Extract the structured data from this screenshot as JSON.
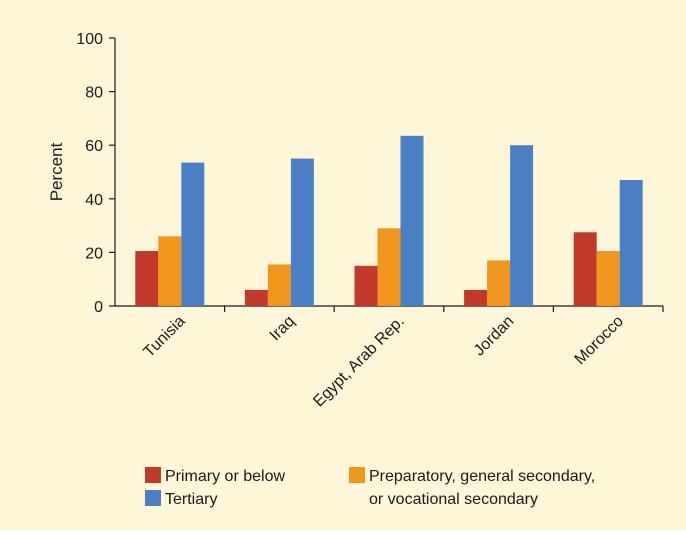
{
  "colors": {
    "background": "#fdf6d8",
    "primary": "#c0392b",
    "preparatory": "#f0951e",
    "tertiary": "#4a7fc4",
    "axis": "#1a1a1a"
  },
  "chart_data": {
    "type": "bar",
    "ylabel": "Percent",
    "xlabel": "",
    "ylim": [
      0,
      100
    ],
    "yticks": [
      0,
      20,
      40,
      60,
      80,
      100
    ],
    "grid": false,
    "legend_position": "bottom",
    "categories": [
      "Tunisia",
      "Iraq",
      "Egypt, Arab Rep.",
      "Jordan",
      "Morocco"
    ],
    "series": [
      {
        "name": "Primary or below",
        "values": [
          20.5,
          6,
          15,
          6,
          27.5
        ]
      },
      {
        "name": "Preparatory, general secondary, or vocational secondary",
        "values": [
          26,
          15.5,
          29,
          17,
          20.5
        ]
      },
      {
        "name": "Tertiary",
        "values": [
          53.5,
          55,
          63.5,
          60,
          47
        ]
      }
    ]
  },
  "legend": {
    "primary_label": "Primary or below",
    "preparatory_label_line1": "Preparatory, general secondary,",
    "preparatory_label_line2": "or vocational secondary",
    "tertiary_label": "Tertiary"
  }
}
